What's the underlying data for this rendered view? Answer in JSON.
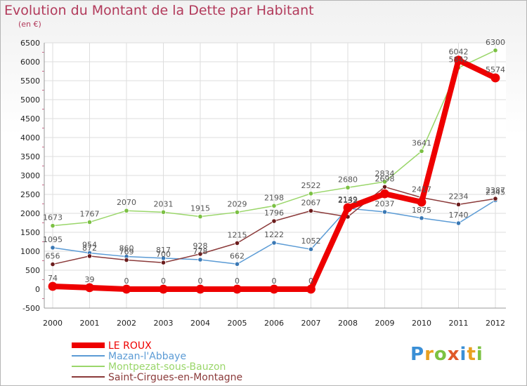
{
  "chart_data": {
    "type": "line",
    "title": "Evolution du Montant de la Dette par Habitant",
    "subtitle": "(en €)",
    "x": [
      "2000",
      "2001",
      "2002",
      "2003",
      "2004",
      "2005",
      "2006",
      "2007",
      "2008",
      "2009",
      "2010",
      "2011",
      "2012"
    ],
    "ylim": [
      -500,
      6500
    ],
    "yticks": [
      -500,
      0,
      500,
      1000,
      1500,
      2000,
      2500,
      3000,
      3500,
      4000,
      4500,
      5000,
      5500,
      6000,
      6500
    ],
    "grid": true,
    "series": [
      {
        "name": "Mazan-l'Abbaye",
        "color": "#5b9bd5",
        "marker": "#3a78b4",
        "width": 1.5,
        "values": [
          1095,
          954,
          860,
          817,
          778,
          662,
          1222,
          1052,
          2132,
          2037,
          1875,
          1740,
          2345
        ]
      },
      {
        "name": "Montpezat-sous-Bauzon",
        "color": "#9ad66a",
        "marker": "#7bc043",
        "width": 1.5,
        "values": [
          1673,
          1767,
          2070,
          2031,
          1915,
          2029,
          2198,
          2522,
          2680,
          2834,
          3641,
          5842,
          6300
        ]
      },
      {
        "name": "Saint-Cirgues-en-Montagne",
        "color": "#8b3a3a",
        "marker": "#6b1c1c",
        "width": 1.5,
        "values": [
          656,
          872,
          769,
          700,
          928,
          1215,
          1796,
          2067,
          1909,
          2698,
          2417,
          2234,
          2387
        ]
      },
      {
        "name": "LE ROUX",
        "color": "#ee0000",
        "marker": "#ee0000",
        "width": 8,
        "values": [
          74,
          39,
          0,
          0,
          0,
          0,
          0,
          0,
          2149,
          2516,
          2297,
          6042,
          5574
        ]
      }
    ],
    "data_labels": [
      {
        "text": "1673",
        "x": "2000",
        "y": 1673
      },
      {
        "text": "1767",
        "x": "2001",
        "y": 1767
      },
      {
        "text": "2070",
        "x": "2002",
        "y": 2070
      },
      {
        "text": "2031",
        "x": "2003",
        "y": 2031
      },
      {
        "text": "1915",
        "x": "2004",
        "y": 1915
      },
      {
        "text": "2029",
        "x": "2005",
        "y": 2029
      },
      {
        "text": "2198",
        "x": "2006",
        "y": 2198
      },
      {
        "text": "2522",
        "x": "2007",
        "y": 2522
      },
      {
        "text": "2680",
        "x": "2008",
        "y": 2680
      },
      {
        "text": "2834",
        "x": "2009",
        "y": 2834
      },
      {
        "text": "3641",
        "x": "2010",
        "y": 3641
      },
      {
        "text": "5842",
        "x": "2011",
        "y": 5842
      },
      {
        "text": "6300",
        "x": "2012",
        "y": 6300
      },
      {
        "text": "1095",
        "x": "2000",
        "y": 1095
      },
      {
        "text": "954",
        "x": "2001",
        "y": 954
      },
      {
        "text": "860",
        "x": "2002",
        "y": 860
      },
      {
        "text": "817",
        "x": "2003",
        "y": 817
      },
      {
        "text": "778",
        "x": "2004",
        "y": 778
      },
      {
        "text": "662",
        "x": "2005",
        "y": 662
      },
      {
        "text": "1222",
        "x": "2006",
        "y": 1222
      },
      {
        "text": "1052",
        "x": "2007",
        "y": 1052
      },
      {
        "text": "2132",
        "x": "2008",
        "y": 2132
      },
      {
        "text": "2037",
        "x": "2009",
        "y": 2037
      },
      {
        "text": "1875",
        "x": "2010",
        "y": 1875
      },
      {
        "text": "1740",
        "x": "2011",
        "y": 1740
      },
      {
        "text": "2345",
        "x": "2012",
        "y": 2345
      },
      {
        "text": "656",
        "x": "2000",
        "y": 656
      },
      {
        "text": "872",
        "x": "2001",
        "y": 872
      },
      {
        "text": "769",
        "x": "2002",
        "y": 769
      },
      {
        "text": "700",
        "x": "2003",
        "y": 700
      },
      {
        "text": "928",
        "x": "2004",
        "y": 928
      },
      {
        "text": "1215",
        "x": "2005",
        "y": 1215
      },
      {
        "text": "1796",
        "x": "2006",
        "y": 1796
      },
      {
        "text": "2067",
        "x": "2007",
        "y": 2067
      },
      {
        "text": "2149",
        "x": "2008",
        "y": 2149
      },
      {
        "text": "2698",
        "x": "2009",
        "y": 2698
      },
      {
        "text": "2417",
        "x": "2010",
        "y": 2417
      },
      {
        "text": "2234",
        "x": "2011",
        "y": 2234
      },
      {
        "text": "2387",
        "x": "2012",
        "y": 2387
      },
      {
        "text": "74",
        "x": "2000",
        "y": 74
      },
      {
        "text": "39",
        "x": "2001",
        "y": 39
      },
      {
        "text": "0",
        "x": "2002",
        "y": 0
      },
      {
        "text": "0",
        "x": "2003",
        "y": 0
      },
      {
        "text": "0",
        "x": "2004",
        "y": 0
      },
      {
        "text": "0",
        "x": "2005",
        "y": 0
      },
      {
        "text": "0",
        "x": "2006",
        "y": 0
      },
      {
        "text": "0",
        "x": "2007",
        "y": 0
      },
      {
        "text": "6042",
        "x": "2011",
        "y": 6042
      },
      {
        "text": "5574",
        "x": "2012",
        "y": 5574
      }
    ],
    "legend": [
      {
        "name": "LE ROUX",
        "color": "#ee0000"
      },
      {
        "name": "Mazan-l'Abbaye",
        "color": "#5b9bd5"
      },
      {
        "name": "Montpezat-sous-Bauzon",
        "color": "#9ad66a"
      },
      {
        "name": "Saint-Cirgues-en-Montagne",
        "color": "#8b3a3a"
      }
    ],
    "legend_position": "bottom-left"
  },
  "logo": {
    "letters": [
      "P",
      "r",
      "o",
      "x",
      "i",
      "t",
      "i"
    ],
    "colors": [
      "#3a8fd6",
      "#e8a020",
      "#7cc242",
      "#e05a2a",
      "#3a8fd6",
      "#e8a020",
      "#7cc242"
    ]
  }
}
